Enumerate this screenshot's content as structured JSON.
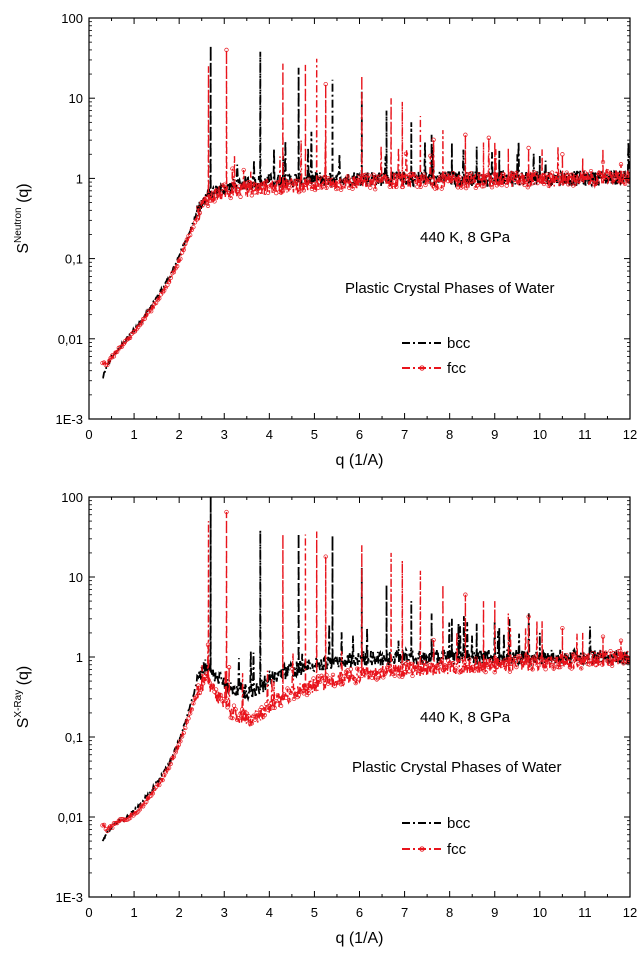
{
  "chart_data": [
    {
      "type": "line",
      "xlabel": "q (1/A)",
      "ylabel_main": "S",
      "ylabel_sup": "Neutron",
      "ylabel_suffix": " (q)",
      "xlim": [
        0,
        12
      ],
      "ylim": [
        0.001,
        100
      ],
      "yscale": "log",
      "xticks": [
        "0",
        "1",
        "2",
        "3",
        "4",
        "5",
        "6",
        "7",
        "8",
        "9",
        "10",
        "11",
        "12"
      ],
      "yticks": [
        "1E-3",
        "0,01",
        "0,1",
        "1",
        "10",
        "100"
      ],
      "annotations": [
        "440 K, 8 GPa",
        "Plastic Crystal Phases of Water"
      ],
      "legend_position": "center-right",
      "grid": false,
      "series": [
        {
          "name": "bcc",
          "color": "#000000",
          "style": "dash-dot",
          "baseline": {
            "x": [
              0.3,
              0.4,
              0.5,
              0.6,
              0.7,
              0.8,
              1.0,
              1.2,
              1.4,
              1.6,
              1.8,
              2.0,
              2.2,
              2.4,
              2.6,
              2.8,
              3.0,
              3.2,
              3.4,
              3.6,
              4.0,
              5.0,
              6.0,
              7.0,
              8.0,
              9.0,
              10.0,
              11.0,
              12.0
            ],
            "y": [
              0.0032,
              0.0045,
              0.006,
              0.0068,
              0.008,
              0.0095,
              0.013,
              0.018,
              0.026,
              0.04,
              0.06,
              0.11,
              0.2,
              0.37,
              0.6,
              0.7,
              0.75,
              0.8,
              0.85,
              0.88,
              0.92,
              0.98,
              1.0,
              1.0,
              1.0,
              1.0,
              1.0,
              1.0,
              1.05
            ]
          },
          "peaks": [
            {
              "x": 2.7,
              "y": 45
            },
            {
              "x": 3.8,
              "y": 38
            },
            {
              "x": 4.65,
              "y": 24
            },
            {
              "x": 5.4,
              "y": 17
            },
            {
              "x": 6.05,
              "y": 12
            },
            {
              "x": 6.6,
              "y": 7
            },
            {
              "x": 7.15,
              "y": 5
            },
            {
              "x": 7.6,
              "y": 3.5
            },
            {
              "x": 8.05,
              "y": 2.8
            },
            {
              "x": 8.6,
              "y": 2.5
            },
            {
              "x": 9.1,
              "y": 2.2
            },
            {
              "x": 9.5,
              "y": 2.0
            },
            {
              "x": 10.0,
              "y": 1.9
            }
          ]
        },
        {
          "name": "fcc",
          "color": "#e8141c",
          "style": "dash-dot-circle",
          "baseline": {
            "x": [
              0.3,
              0.4,
              0.5,
              0.6,
              0.7,
              0.8,
              1.0,
              1.2,
              1.4,
              1.6,
              1.8,
              2.0,
              2.2,
              2.4,
              2.6,
              2.8,
              3.0,
              3.2,
              3.4,
              3.6,
              4.0,
              5.0,
              6.0,
              7.0,
              8.0,
              9.0,
              10.0,
              11.0,
              12.0
            ],
            "y": [
              0.005,
              0.0048,
              0.0058,
              0.0068,
              0.0078,
              0.009,
              0.012,
              0.017,
              0.024,
              0.036,
              0.055,
              0.095,
              0.18,
              0.33,
              0.55,
              0.62,
              0.68,
              0.7,
              0.72,
              0.74,
              0.78,
              0.85,
              0.9,
              0.92,
              0.93,
              0.95,
              0.97,
              0.98,
              1.05
            ]
          },
          "peaks": [
            {
              "x": 2.65,
              "y": 25
            },
            {
              "x": 3.05,
              "y": 40
            },
            {
              "x": 4.3,
              "y": 27
            },
            {
              "x": 4.8,
              "y": 26
            },
            {
              "x": 5.05,
              "y": 31
            },
            {
              "x": 5.25,
              "y": 15
            },
            {
              "x": 6.05,
              "y": 19
            },
            {
              "x": 6.7,
              "y": 10
            },
            {
              "x": 6.95,
              "y": 9
            },
            {
              "x": 7.35,
              "y": 6
            },
            {
              "x": 7.85,
              "y": 4
            },
            {
              "x": 8.35,
              "y": 3.5
            },
            {
              "x": 8.75,
              "y": 2.8
            },
            {
              "x": 9.0,
              "y": 2.8
            },
            {
              "x": 9.3,
              "y": 2.4
            },
            {
              "x": 9.75,
              "y": 2.4
            },
            {
              "x": 10.05,
              "y": 2.3
            },
            {
              "x": 10.5,
              "y": 2.0
            },
            {
              "x": 10.95,
              "y": 1.8
            },
            {
              "x": 11.4,
              "y": 1.6
            },
            {
              "x": 11.8,
              "y": 1.5
            }
          ]
        }
      ]
    },
    {
      "type": "line",
      "xlabel": "q (1/A)",
      "ylabel_main": "S",
      "ylabel_sup": "X-Ray",
      "ylabel_suffix": " (q)",
      "xlim": [
        0,
        12
      ],
      "ylim": [
        0.001,
        100
      ],
      "yscale": "log",
      "xticks": [
        "0",
        "1",
        "2",
        "3",
        "4",
        "5",
        "6",
        "7",
        "8",
        "9",
        "10",
        "11",
        "12"
      ],
      "yticks": [
        "1E-3",
        "0,01",
        "0,1",
        "1",
        "10",
        "100"
      ],
      "annotations": [
        "440 K, 8 GPa",
        "Plastic Crystal Phases of Water"
      ],
      "legend_position": "center-right",
      "grid": false,
      "series": [
        {
          "name": "bcc",
          "color": "#000000",
          "style": "dash-dot",
          "baseline": {
            "x": [
              0.3,
              0.4,
              0.5,
              0.6,
              0.7,
              0.8,
              1.0,
              1.2,
              1.4,
              1.6,
              1.8,
              2.0,
              2.2,
              2.4,
              2.6,
              2.8,
              3.0,
              3.2,
              3.4,
              3.6,
              3.8,
              4.0,
              4.5,
              5.0,
              6.0,
              7.0,
              8.0,
              9.0,
              10.0,
              11.0,
              12.0
            ],
            "y": [
              0.0048,
              0.0065,
              0.0075,
              0.0085,
              0.009,
              0.0095,
              0.012,
              0.016,
              0.022,
              0.032,
              0.05,
              0.09,
              0.2,
              0.5,
              0.8,
              0.6,
              0.45,
              0.4,
              0.38,
              0.37,
              0.4,
              0.55,
              0.7,
              0.8,
              0.95,
              1.0,
              1.0,
              1.0,
              1.0,
              1.0,
              1.0
            ]
          },
          "peaks": [
            {
              "x": 2.7,
              "y": 100
            },
            {
              "x": 3.8,
              "y": 38
            },
            {
              "x": 4.65,
              "y": 35
            },
            {
              "x": 5.4,
              "y": 33
            },
            {
              "x": 6.05,
              "y": 13
            },
            {
              "x": 6.6,
              "y": 8
            },
            {
              "x": 7.15,
              "y": 5
            },
            {
              "x": 7.6,
              "y": 3.5
            },
            {
              "x": 8.05,
              "y": 3.0
            },
            {
              "x": 8.6,
              "y": 2.6
            },
            {
              "x": 9.1,
              "y": 2.3
            },
            {
              "x": 10.0,
              "y": 2.0
            }
          ]
        },
        {
          "name": "fcc",
          "color": "#e8141c",
          "style": "dash-dot-circle",
          "baseline": {
            "x": [
              0.3,
              0.4,
              0.5,
              0.6,
              0.7,
              0.8,
              1.0,
              1.2,
              1.4,
              1.6,
              1.8,
              2.0,
              2.2,
              2.4,
              2.6,
              2.8,
              3.0,
              3.2,
              3.4,
              3.6,
              3.8,
              4.0,
              4.5,
              5.0,
              6.0,
              7.0,
              8.0,
              9.0,
              10.0,
              11.0,
              12.0
            ],
            "y": [
              0.008,
              0.007,
              0.0075,
              0.0085,
              0.009,
              0.0092,
              0.011,
              0.014,
              0.02,
              0.028,
              0.045,
              0.08,
              0.17,
              0.35,
              0.5,
              0.35,
              0.25,
              0.2,
              0.18,
              0.17,
              0.19,
              0.25,
              0.35,
              0.45,
              0.6,
              0.7,
              0.75,
              0.8,
              0.85,
              0.9,
              1.0
            ]
          },
          "peaks": [
            {
              "x": 2.65,
              "y": 50
            },
            {
              "x": 3.05,
              "y": 65
            },
            {
              "x": 4.3,
              "y": 34
            },
            {
              "x": 4.8,
              "y": 34
            },
            {
              "x": 5.05,
              "y": 37
            },
            {
              "x": 5.25,
              "y": 18
            },
            {
              "x": 6.05,
              "y": 25
            },
            {
              "x": 6.7,
              "y": 20
            },
            {
              "x": 6.95,
              "y": 16
            },
            {
              "x": 7.35,
              "y": 12
            },
            {
              "x": 7.85,
              "y": 8
            },
            {
              "x": 8.35,
              "y": 6
            },
            {
              "x": 8.75,
              "y": 5
            },
            {
              "x": 9.0,
              "y": 5
            },
            {
              "x": 9.3,
              "y": 3.5
            },
            {
              "x": 9.75,
              "y": 3.2
            },
            {
              "x": 10.05,
              "y": 2.8
            },
            {
              "x": 10.5,
              "y": 2.3
            },
            {
              "x": 10.95,
              "y": 2.0
            },
            {
              "x": 11.4,
              "y": 1.8
            },
            {
              "x": 11.8,
              "y": 1.6
            }
          ]
        }
      ]
    }
  ]
}
